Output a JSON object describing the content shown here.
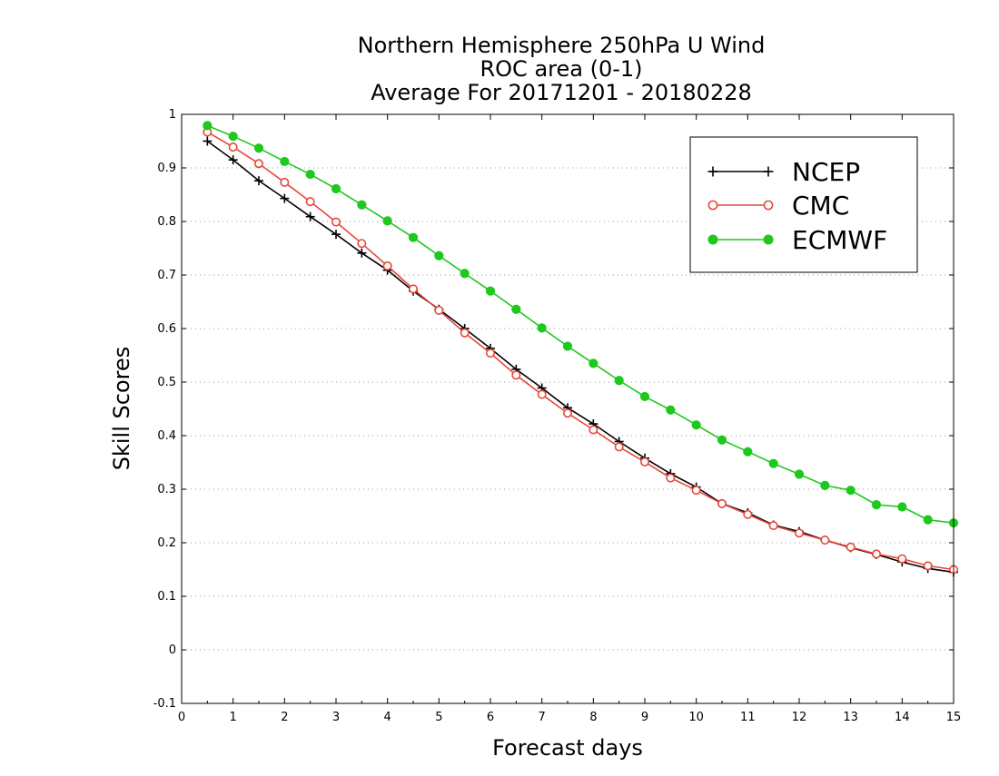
{
  "chart_data": {
    "type": "line",
    "title_lines": [
      "Northern Hemisphere 250hPa U Wind",
      "ROC area (0-1)",
      "Average For 20171201 - 20180228"
    ],
    "xlabel": "Forecast days",
    "ylabel": "Skill Scores",
    "xlim": [
      0,
      15
    ],
    "ylim": [
      -0.1,
      1
    ],
    "x_ticks": [
      0,
      1,
      2,
      3,
      4,
      5,
      6,
      7,
      8,
      9,
      10,
      11,
      12,
      13,
      14,
      15
    ],
    "x_tick_labels": [
      "0",
      "1",
      "2",
      "3",
      "4",
      "5",
      "6",
      "7",
      "8",
      "9",
      "10",
      "11",
      "12",
      "13",
      "14",
      "15"
    ],
    "y_ticks": [
      -0.1,
      0,
      0.1,
      0.2,
      0.3,
      0.4,
      0.5,
      0.6,
      0.7,
      0.8,
      0.9,
      1
    ],
    "y_tick_labels": [
      "-0.1",
      "0",
      "0.1",
      "0.2",
      "0.3",
      "0.4",
      "0.5",
      "0.6",
      "0.7",
      "0.8",
      "0.9",
      "1"
    ],
    "grid": "horizontal-dotted",
    "legend_position": "top-right",
    "x": [
      0.5,
      1,
      1.5,
      2,
      2.5,
      3,
      3.5,
      4,
      4.5,
      5,
      5.5,
      6,
      6.5,
      7,
      7.5,
      8,
      8.5,
      9,
      9.5,
      10,
      10.5,
      11,
      11.5,
      12,
      12.5,
      13,
      13.5,
      14,
      14.5,
      15
    ],
    "series": [
      {
        "name": "NCEP",
        "color": "#000000",
        "marker": "plus",
        "values": [
          0.95,
          0.915,
          0.876,
          0.843,
          0.809,
          0.776,
          0.741,
          0.709,
          0.67,
          0.636,
          0.6,
          0.563,
          0.524,
          0.489,
          0.452,
          0.422,
          0.389,
          0.358,
          0.329,
          0.304,
          0.273,
          0.256,
          0.233,
          0.221,
          0.205,
          0.191,
          0.178,
          0.164,
          0.152,
          0.145
        ]
      },
      {
        "name": "CMC",
        "color": "#e8463c",
        "marker": "open-circle",
        "values": [
          0.967,
          0.939,
          0.908,
          0.873,
          0.837,
          0.799,
          0.759,
          0.717,
          0.674,
          0.634,
          0.592,
          0.554,
          0.513,
          0.477,
          0.442,
          0.411,
          0.379,
          0.351,
          0.321,
          0.298,
          0.273,
          0.253,
          0.232,
          0.218,
          0.205,
          0.192,
          0.179,
          0.17,
          0.157,
          0.15
        ]
      },
      {
        "name": "ECMWF",
        "color": "#1ec81e",
        "marker": "filled-circle",
        "values": [
          0.979,
          0.959,
          0.937,
          0.912,
          0.888,
          0.861,
          0.831,
          0.801,
          0.77,
          0.736,
          0.703,
          0.67,
          0.636,
          0.601,
          0.567,
          0.535,
          0.503,
          0.473,
          0.448,
          0.42,
          0.392,
          0.37,
          0.348,
          0.328,
          0.307,
          0.298,
          0.271,
          0.267,
          0.243,
          0.237
        ]
      }
    ]
  }
}
